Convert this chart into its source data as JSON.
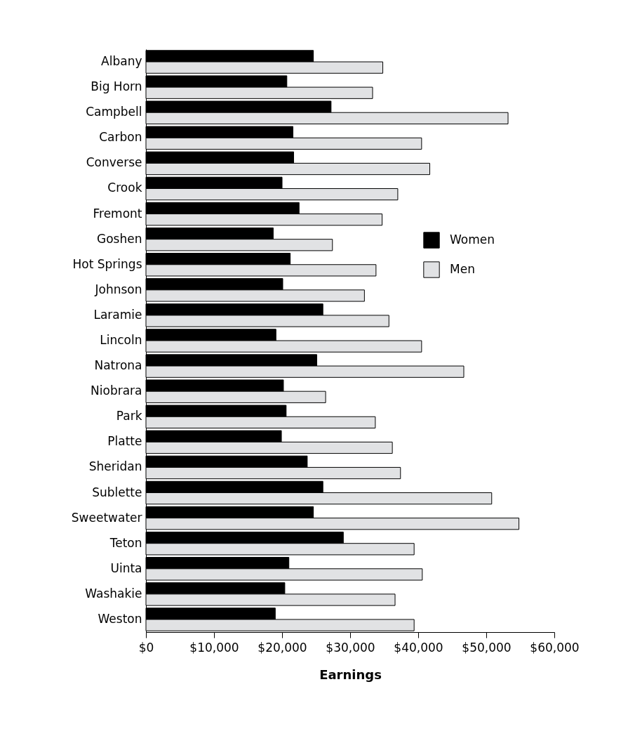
{
  "chart_data": {
    "type": "bar",
    "orientation": "horizontal",
    "xlabel": "Earnings",
    "categories": [
      "Albany",
      "Big Horn",
      "Campbell",
      "Carbon",
      "Converse",
      "Crook",
      "Fremont",
      "Goshen",
      "Hot Springs",
      "Johnson",
      "Laramie",
      "Lincoln",
      "Natrona",
      "Niobrara",
      "Park",
      "Platte",
      "Sheridan",
      "Sublette",
      "Sweetwater",
      "Teton",
      "Uinta",
      "Washakie",
      "Weston"
    ],
    "series": [
      {
        "name": "Women",
        "color": "#000000",
        "values": [
          24600,
          20700,
          27200,
          21600,
          21700,
          20000,
          22500,
          18700,
          21200,
          20100,
          26000,
          19100,
          25100,
          20200,
          20600,
          19900,
          23700,
          26000,
          24600,
          29000,
          21000,
          20400,
          19000
        ]
      },
      {
        "name": "Men",
        "color": "#e1e2e4",
        "values": [
          34800,
          33300,
          53200,
          40500,
          41700,
          37000,
          34700,
          27400,
          33800,
          32100,
          35700,
          40500,
          46700,
          26400,
          33700,
          36200,
          37400,
          50800,
          54800,
          39400,
          40600,
          36600,
          39400
        ]
      }
    ],
    "xlim": [
      0,
      60000
    ],
    "xticks": [
      {
        "value": 0,
        "label": "$0"
      },
      {
        "value": 10000,
        "label": "$10,000"
      },
      {
        "value": 20000,
        "label": "$20,000"
      },
      {
        "value": 30000,
        "label": "$30,000"
      },
      {
        "value": 40000,
        "label": "$40,000"
      },
      {
        "value": 50000,
        "label": "$50,000"
      },
      {
        "value": 60000,
        "label": "$60,000"
      }
    ],
    "grid": false,
    "legend": "right"
  }
}
